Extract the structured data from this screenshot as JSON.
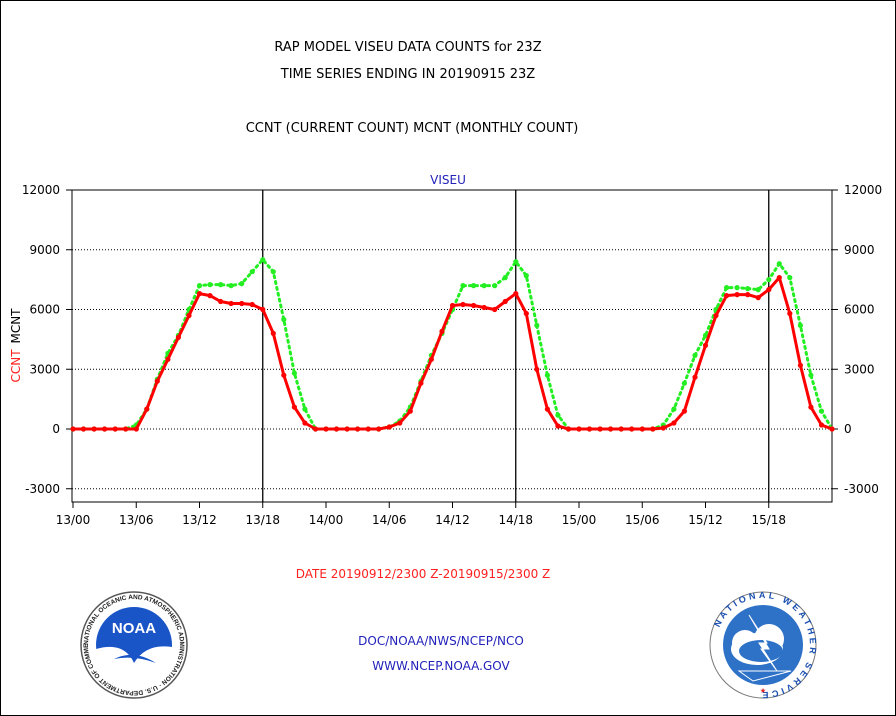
{
  "header": {
    "title_line1": "RAP MODEL VISEU DATA COUNTS for 23Z",
    "title_line2": "TIME SERIES ENDING IN 20190915 23Z",
    "subtitle": "CCNT (CURRENT COUNT) MCNT (MONTHLY COUNT)"
  },
  "footer": {
    "date_range": "DATE 20190912/2300 Z-20190915/2300 Z",
    "org_line": "DOC/NOAA/NWS/NCEP/NCO",
    "url_line": "WWW.NCEP.NOAA.GOV"
  },
  "logos": {
    "noaa_text": "NOAA",
    "noaa_ring": "NATIONAL OCEANIC AND ATMOSPHERIC ADMINISTRATION · U.S. DEPARTMENT OF COMMERCE ·",
    "nws_ring": "NATIONAL WEATHER SERVICE"
  },
  "chart_data": {
    "type": "line",
    "title": "VISEU",
    "ylabel_left": [
      "CCNT",
      "MCNT"
    ],
    "ylim": [
      -3500,
      12000
    ],
    "yticks": [
      12000,
      9000,
      6000,
      3000,
      0,
      -3000
    ],
    "ytick_labels": [
      "12000",
      "9000",
      "6000",
      "3000",
      "0",
      "-3000"
    ],
    "xlim_hours": [
      0,
      72
    ],
    "xticks_hours": [
      0,
      6,
      12,
      18,
      24,
      30,
      36,
      42,
      48,
      54,
      60,
      66
    ],
    "xtick_labels": [
      "13/00",
      "13/06",
      "13/12",
      "13/18",
      "14/00",
      "14/06",
      "14/12",
      "14/18",
      "15/00",
      "15/06",
      "15/12",
      "15/18"
    ],
    "vertical_lines_hours": [
      18,
      42,
      66
    ],
    "grid": "dotted horizontal",
    "colors": {
      "ccnt": "#ff0000",
      "mcnt": "#22ee22"
    },
    "x_hours": [
      0,
      1,
      2,
      3,
      4,
      5,
      6,
      7,
      8,
      9,
      10,
      11,
      12,
      13,
      14,
      15,
      16,
      17,
      18,
      19,
      20,
      21,
      22,
      23,
      24,
      25,
      26,
      27,
      28,
      29,
      30,
      31,
      32,
      33,
      34,
      35,
      36,
      37,
      38,
      39,
      40,
      41,
      42,
      43,
      44,
      45,
      46,
      47,
      48,
      49,
      50,
      51,
      52,
      53,
      54,
      55,
      56,
      57,
      58,
      59,
      60,
      61,
      62,
      63,
      64,
      65,
      66,
      67,
      68,
      69,
      70,
      71,
      72
    ],
    "series": [
      {
        "name": "CCNT",
        "color": "#ff0000",
        "style": "solid",
        "values": [
          0,
          0,
          0,
          0,
          0,
          0,
          0,
          1000,
          2400,
          3500,
          4600,
          5700,
          6800,
          6700,
          6400,
          6300,
          6300,
          6250,
          6000,
          4800,
          2700,
          1100,
          300,
          0,
          0,
          0,
          0,
          0,
          0,
          0,
          100,
          300,
          900,
          2300,
          3500,
          4900,
          6200,
          6250,
          6200,
          6100,
          6000,
          6400,
          6800,
          5800,
          3000,
          1000,
          150,
          0,
          0,
          0,
          0,
          0,
          0,
          0,
          0,
          0,
          50,
          300,
          900,
          2600,
          4200,
          5700,
          6700,
          6750,
          6750,
          6600,
          7000,
          7600,
          5800,
          3200,
          1100,
          200,
          0
        ]
      },
      {
        "name": "MCNT",
        "color": "#22ee22",
        "style": "dotted",
        "values": [
          0,
          0,
          0,
          0,
          0,
          0,
          200,
          1000,
          2500,
          3800,
          4700,
          6000,
          7200,
          7250,
          7250,
          7200,
          7300,
          7900,
          8500,
          7900,
          5500,
          2800,
          1000,
          0,
          0,
          0,
          0,
          0,
          0,
          0,
          100,
          400,
          1100,
          2400,
          3700,
          4800,
          6000,
          7200,
          7200,
          7200,
          7200,
          7600,
          8400,
          7700,
          5200,
          2700,
          700,
          0,
          0,
          0,
          0,
          0,
          0,
          0,
          0,
          0,
          200,
          1000,
          2300,
          3700,
          4700,
          6000,
          7100,
          7100,
          7050,
          7000,
          7500,
          8300,
          7600,
          5200,
          2700,
          900,
          0
        ]
      }
    ]
  }
}
